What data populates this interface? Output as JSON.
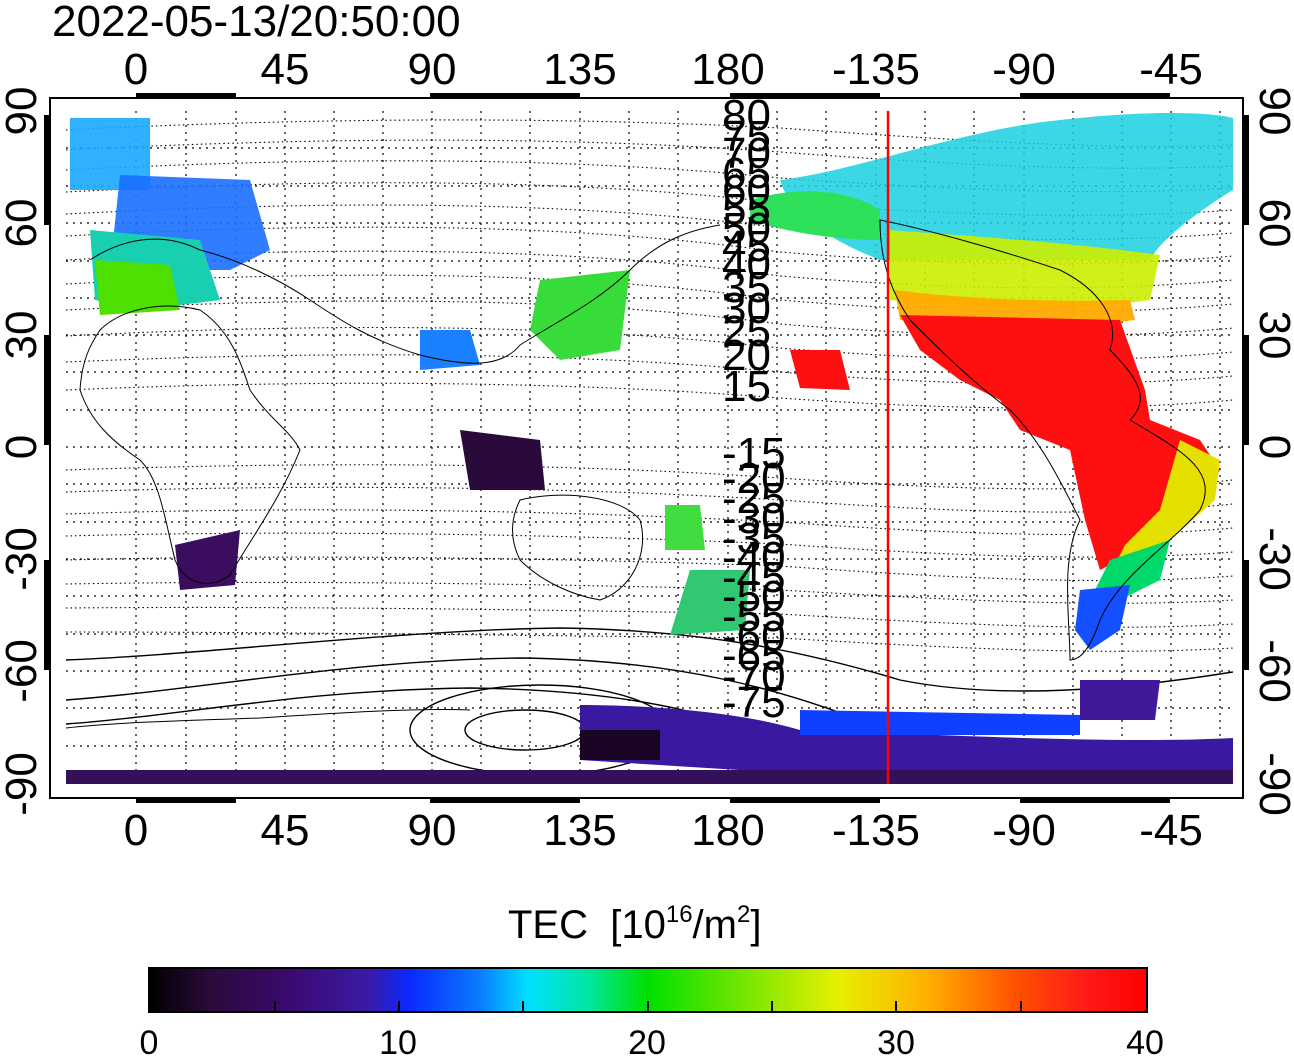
{
  "timestamp": "2022-05-13/20:50:00",
  "map": {
    "top_lon_labels": [
      "0",
      "45",
      "90",
      "135",
      "180",
      "-135",
      "-90",
      "-45"
    ],
    "bottom_lon_labels": [
      "0",
      "45",
      "90",
      "135",
      "180",
      "-135",
      "-90",
      "-45"
    ],
    "left_lat_labels": [
      "90",
      "60",
      "30",
      "0",
      "-30",
      "-60",
      "-90"
    ],
    "right_lat_labels": [
      "90",
      "60",
      "30",
      "0",
      "-30",
      "-60",
      "-90"
    ],
    "mlat_contour_labels": [
      "80",
      "75",
      "70",
      "65",
      "60",
      "55",
      "50",
      "45",
      "40",
      "35",
      "30",
      "25",
      "20",
      "15",
      "-15",
      "-20",
      "-25",
      "-30",
      "-35",
      "-40",
      "-45",
      "-50",
      "-55",
      "-60",
      "-65",
      "-70",
      "-75"
    ],
    "marker_line_color": "#ff0000",
    "marker_longitude": -137
  },
  "colorbar": {
    "title": "TEC",
    "unit_base": "[10",
    "unit_exp": "16",
    "unit_mid": "/m",
    "unit_sq": "2",
    "unit_end": "]",
    "tick_labels": [
      "0",
      "10",
      "20",
      "30",
      "40"
    ],
    "min": 0,
    "max": 40
  }
}
